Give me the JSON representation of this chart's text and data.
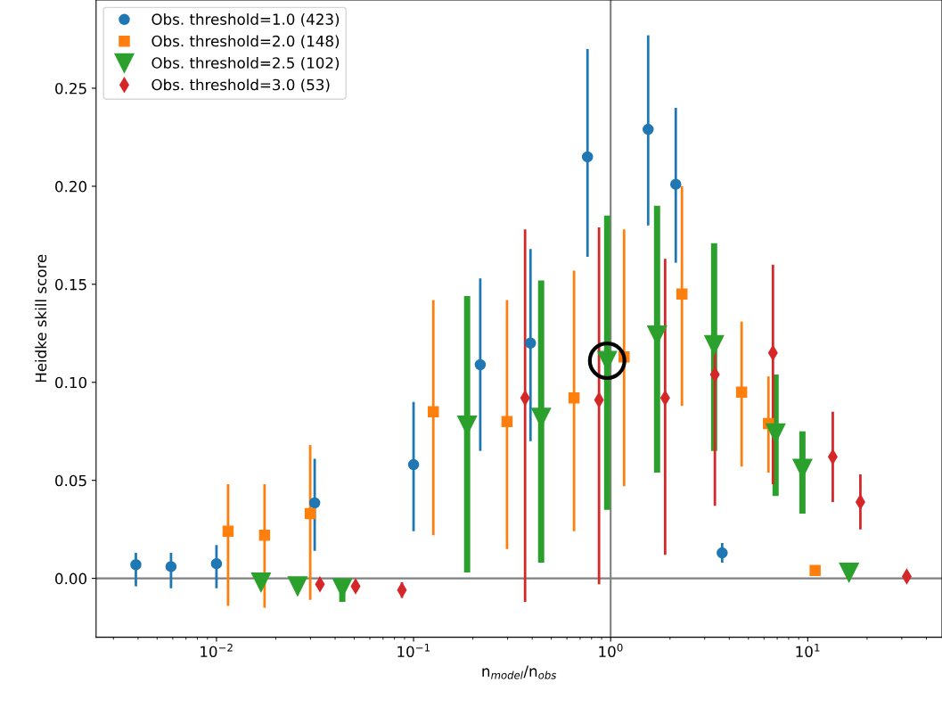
{
  "chart_data": {
    "type": "scatter",
    "xlabel": "n$_{model}$/n$_{obs}$",
    "ylabel": "Heidke skill score",
    "log": "x",
    "xlim": [
      0.00245,
      48
    ],
    "ylim": [
      -0.03,
      0.295
    ],
    "xticks": [
      {
        "value": 0.01,
        "label": "10$^{−2}$"
      },
      {
        "value": 0.1,
        "label": "10$^{−1}$"
      },
      {
        "value": 1,
        "label": "10$^{0}$"
      },
      {
        "value": 10,
        "label": "10$^{1}$"
      }
    ],
    "yticks": [
      {
        "value": 0,
        "label": "0.00"
      },
      {
        "value": 0.05,
        "label": "0.05"
      },
      {
        "value": 0.1,
        "label": "0.10"
      },
      {
        "value": 0.15,
        "label": "0.15"
      },
      {
        "value": 0.2,
        "label": "0.20"
      },
      {
        "value": 0.25,
        "label": "0.25"
      }
    ],
    "grid": false,
    "legend": "top left",
    "ref_lines": [
      {
        "axis": "x",
        "value": 1,
        "color": "#808080"
      },
      {
        "axis": "y",
        "value": 0,
        "color": "#808080"
      }
    ],
    "series": [
      {
        "name": "Obs. threshold=1.0 (423)",
        "color": "#1f77b4",
        "marker": "circle",
        "x": [
          0.0039,
          0.00588,
          0.01,
          0.0315,
          0.1,
          0.218,
          0.392,
          0.763,
          1.55,
          2.14,
          3.68
        ],
        "values": [
          0.007,
          0.006,
          0.0075,
          0.0385,
          0.058,
          0.109,
          0.12,
          0.215,
          0.229,
          0.201,
          0.013
        ],
        "errors": [
          [
            -0.004,
            0.013
          ],
          [
            -0.005,
            0.013
          ],
          [
            -0.005,
            0.017
          ],
          [
            0.014,
            0.061
          ],
          [
            0.024,
            0.09
          ],
          [
            0.065,
            0.153
          ],
          [
            0.07,
            0.168
          ],
          [
            0.164,
            0.27
          ],
          [
            0.18,
            0.277
          ],
          [
            0.161,
            0.24
          ],
          [
            0.008,
            0.018
          ]
        ]
      },
      {
        "name": "Obs. threshold=2.0 (148)",
        "color": "#ff7f0e",
        "marker": "square",
        "x": [
          0.01145,
          0.01754,
          0.0299,
          0.126,
          0.298,
          0.652,
          1.17,
          2.3,
          4.62,
          6.32,
          10.9
        ],
        "values": [
          0.024,
          0.022,
          0.033,
          0.085,
          0.08,
          0.092,
          0.113,
          0.145,
          0.095,
          0.079,
          0.004
        ],
        "errors": [
          [
            -0.014,
            0.048
          ],
          [
            -0.015,
            0.048
          ],
          [
            -0.011,
            0.068
          ],
          [
            0.022,
            0.142
          ],
          [
            0.015,
            0.142
          ],
          [
            0.024,
            0.157
          ],
          [
            0.047,
            0.178
          ],
          [
            0.088,
            0.2
          ],
          [
            0.057,
            0.131
          ],
          [
            0.054,
            0.103
          ],
          null
        ]
      },
      {
        "name": "Obs. threshold=2.5 (102)",
        "color": "#2ca02c",
        "marker": "triangle",
        "x": [
          0.01683,
          0.0258,
          0.0435,
          0.187,
          0.444,
          0.96,
          1.72,
          3.35,
          6.87,
          9.4,
          16.2
        ],
        "values": [
          -0.002,
          -0.004,
          -0.005,
          0.078,
          0.082,
          0.111,
          0.124,
          0.119,
          0.074,
          0.056,
          0.003
        ],
        "errors": [
          null,
          null,
          [
            -0.012,
            -0.005
          ],
          [
            0.003,
            0.144
          ],
          [
            0.008,
            0.152
          ],
          [
            0.035,
            0.185
          ],
          [
            0.054,
            0.19
          ],
          [
            0.065,
            0.171
          ],
          [
            0.042,
            0.104
          ],
          [
            0.033,
            0.075
          ],
          null
        ]
      },
      {
        "name": "Obs. threshold=3.0 (53)",
        "color": "#d62728",
        "marker": "diamond",
        "x": [
          0.0335,
          0.0508,
          0.0873,
          0.368,
          0.873,
          1.89,
          3.38,
          6.66,
          13.4,
          18.5,
          31.8
        ],
        "values": [
          -0.003,
          -0.004,
          -0.006,
          0.092,
          0.091,
          0.092,
          0.104,
          0.115,
          0.062,
          0.039,
          0.001
        ],
        "errors": [
          [
            -0.006,
            0.0
          ],
          [
            -0.007,
            -0.001
          ],
          [
            -0.01,
            -0.002
          ],
          [
            -0.012,
            0.178
          ],
          [
            -0.003,
            0.179
          ],
          [
            0.012,
            0.163
          ],
          [
            0.037,
            0.123
          ],
          [
            0.048,
            0.16
          ],
          [
            0.039,
            0.085
          ],
          [
            0.025,
            0.053
          ],
          null
        ]
      },
      {
        "color": "#000000",
        "marker": "circle",
        "x": [
          0.96
        ],
        "values": [
          0.111
        ]
      }
    ]
  }
}
